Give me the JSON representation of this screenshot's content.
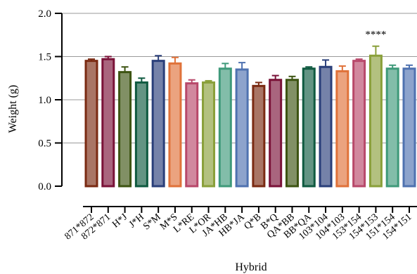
{
  "chart_data": {
    "type": "bar",
    "title": "",
    "xlabel": "Hybrid",
    "ylabel": "Weight (g)",
    "ylim": [
      0,
      2.0
    ],
    "yticks": [
      "0.0",
      "0.5",
      "1.0",
      "1.5",
      "2.0"
    ],
    "grid": "horizontal",
    "categories": [
      "871*872",
      "872*871",
      "H*J",
      "J*H",
      "S*M",
      "M*S",
      "L*RE",
      "L*OR",
      "JA*HB",
      "HB*JA",
      "Q*B",
      "B*Q",
      "QA*BB",
      "BB*QA",
      "103*104",
      "104*103",
      "153*154",
      "154*153",
      "151*154",
      "154*151"
    ],
    "values": [
      1.45,
      1.47,
      1.32,
      1.2,
      1.45,
      1.42,
      1.19,
      1.2,
      1.36,
      1.35,
      1.16,
      1.23,
      1.23,
      1.36,
      1.38,
      1.33,
      1.45,
      1.51,
      1.36,
      1.36
    ],
    "errors": [
      0.02,
      0.03,
      0.06,
      0.05,
      0.06,
      0.07,
      0.04,
      0.02,
      0.06,
      0.08,
      0.04,
      0.05,
      0.04,
      0.02,
      0.08,
      0.06,
      0.02,
      0.11,
      0.04,
      0.04
    ],
    "colors": [
      "#7a2a12",
      "#7a1238",
      "#3d5412",
      "#0f5a40",
      "#2a3f7a",
      "#e0723a",
      "#b8486a",
      "#8aa03a",
      "#3f9a7a",
      "#4f72b0",
      "#7a2a12",
      "#7a1238",
      "#3d5412",
      "#0f5a40",
      "#2a3f7a",
      "#e0723a",
      "#b8486a",
      "#8aa03a",
      "#3f9a7a",
      "#4f72b0"
    ],
    "annotations": [
      {
        "category": "154*153",
        "text": "****"
      }
    ]
  }
}
